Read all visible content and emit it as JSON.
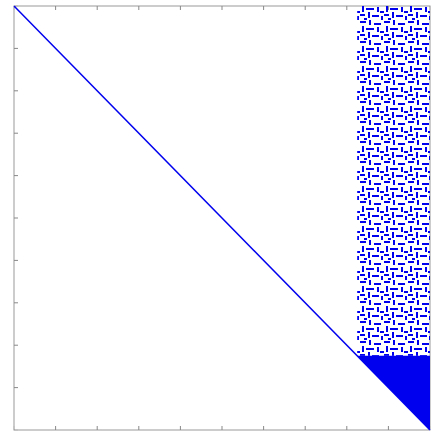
{
  "chart_data": {
    "type": "spy",
    "color": "#0000ee",
    "xlim": [
      0,
      100
    ],
    "ylim": [
      0,
      100
    ],
    "xticks": [
      0,
      10,
      20,
      30,
      40,
      50,
      60,
      70,
      80,
      90,
      100
    ],
    "yticks": [
      0,
      10,
      20,
      30,
      40,
      50,
      60,
      70,
      80,
      90,
      100
    ],
    "diagonal": {
      "from": 0,
      "to": 100
    },
    "sparse_block": {
      "x": [
        82.5,
        100
      ],
      "y": [
        0,
        82.5
      ]
    },
    "dense_triangle": {
      "x": [
        82.5,
        100
      ],
      "y": [
        82.5,
        100
      ]
    }
  }
}
